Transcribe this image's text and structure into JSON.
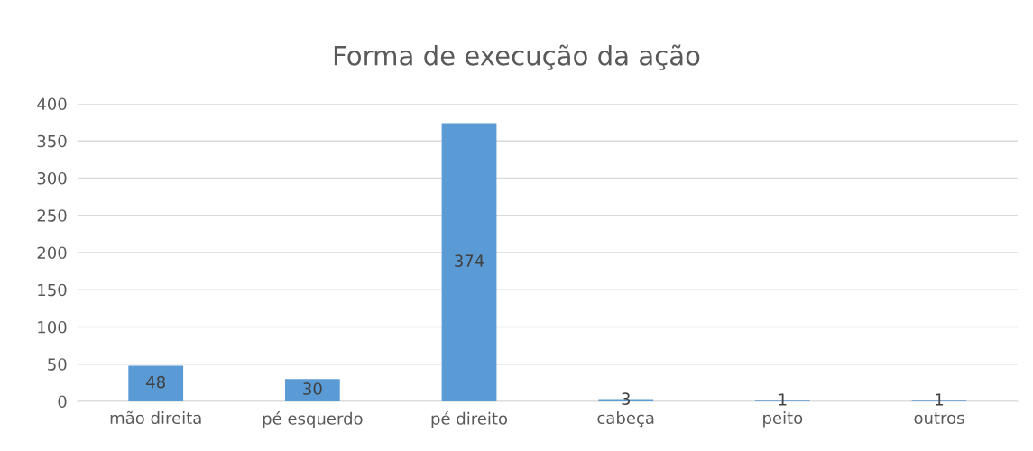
{
  "chart_data": {
    "type": "bar",
    "title": "Forma de execução da ação",
    "categories": [
      "mão direita",
      "pé esquerdo",
      "pé direito",
      "cabeça",
      "peito",
      "outros"
    ],
    "values": [
      48,
      30,
      374,
      3,
      1,
      1
    ],
    "color": "#5b9bd5",
    "ylim": [
      0,
      400
    ],
    "yticks": [
      0,
      50,
      100,
      150,
      200,
      250,
      300,
      350,
      400
    ],
    "grid": "y",
    "data_labels": true
  }
}
